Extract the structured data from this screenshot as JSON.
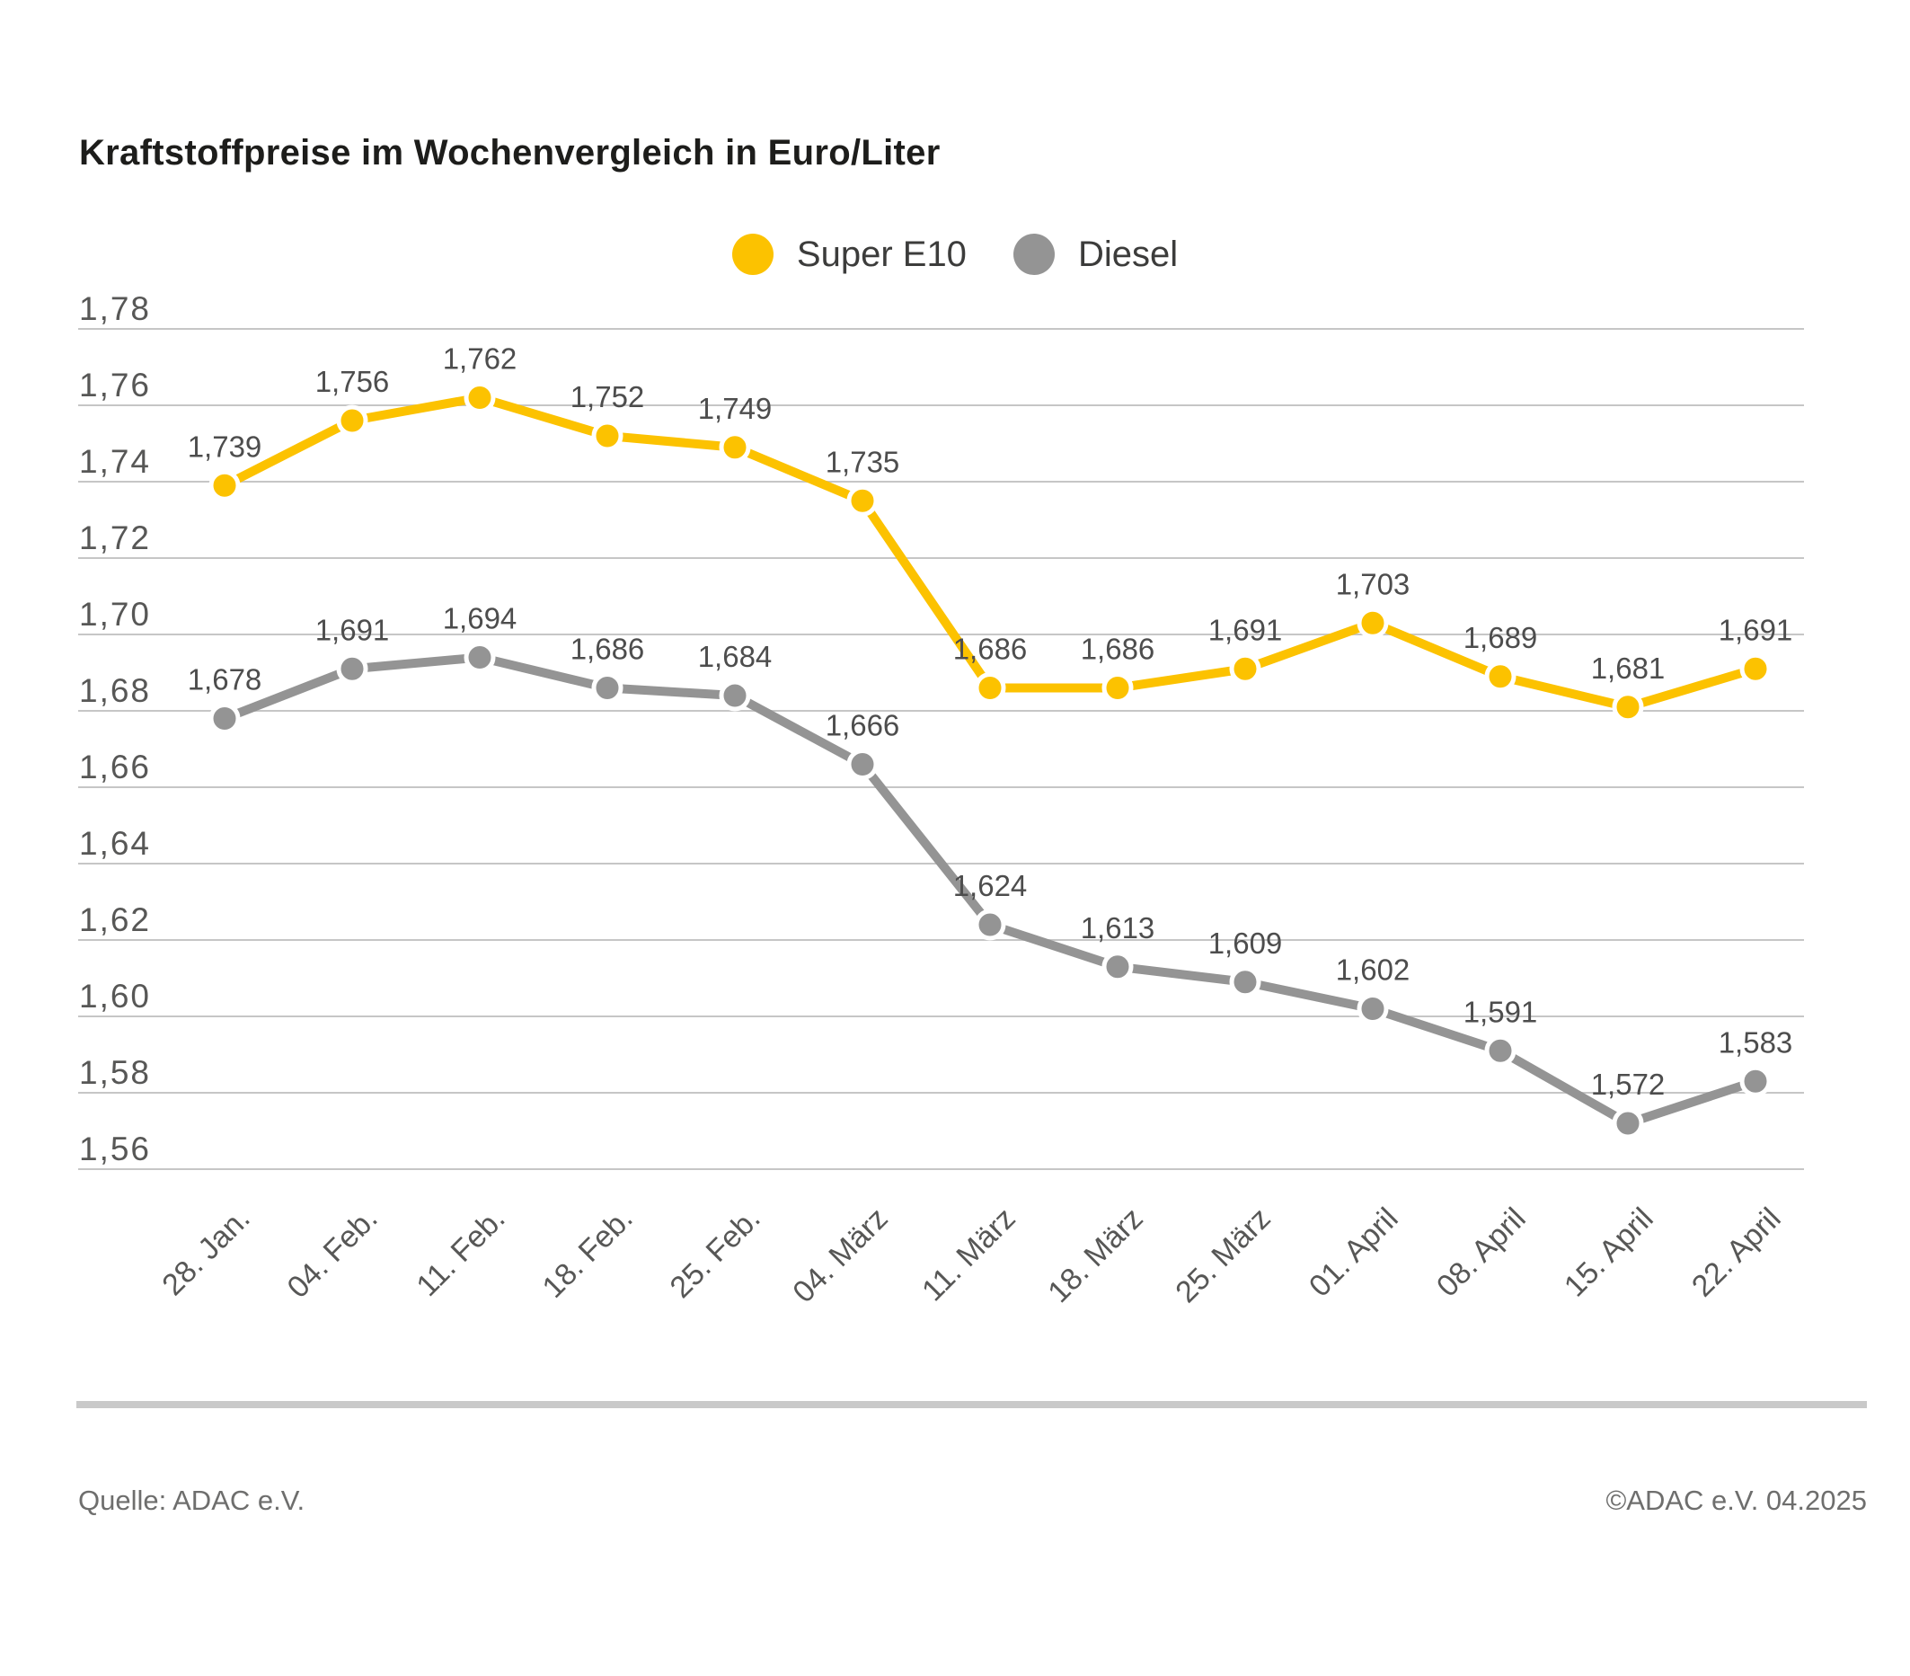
{
  "title": "Kraftstoffpreise im Wochenvergleich in Euro/Liter",
  "footer": {
    "source": "Quelle: ADAC e.V.",
    "copyright": "©ADAC e.V. 04.2025"
  },
  "colors": {
    "super_e10": "#fcc200",
    "diesel": "#949494",
    "grid": "#c6c6c6",
    "tick_label": "#575756",
    "data_label": "#4d4d4d",
    "divider": "#c9c9c9"
  },
  "chart_data": {
    "type": "line",
    "title": "Kraftstoffpreise im Wochenvergleich in Euro/Liter",
    "x": [
      "28. Jan.",
      "04. Feb.",
      "11. Feb.",
      "18. Feb.",
      "25. Feb.",
      "04. März",
      "11. März",
      "18. März",
      "25. März",
      "01. April",
      "08. April",
      "15. April",
      "22. April"
    ],
    "series": [
      {
        "name": "Super E10",
        "color": "#fcc200",
        "values": [
          1.739,
          1.756,
          1.762,
          1.752,
          1.749,
          1.735,
          1.686,
          1.686,
          1.691,
          1.703,
          1.689,
          1.681,
          1.691
        ],
        "point_labels": [
          "1,739",
          "1,756",
          "1,762",
          "1,752",
          "1,749",
          "1,735",
          "1,686",
          "1,686",
          "1,691",
          "1,703",
          "1,689",
          "1,681",
          "1,691"
        ]
      },
      {
        "name": "Diesel",
        "color": "#949494",
        "values": [
          1.678,
          1.691,
          1.694,
          1.686,
          1.684,
          1.666,
          1.624,
          1.613,
          1.609,
          1.602,
          1.591,
          1.572,
          1.583
        ],
        "point_labels": [
          "1,678",
          "1,691",
          "1,694",
          "1,686",
          "1,684",
          "1,666",
          "1,624",
          "1,613",
          "1,609",
          "1,602",
          "1,591",
          "1,572",
          "1,583"
        ]
      }
    ],
    "ylim": [
      1.56,
      1.78
    ],
    "ytick_step": 0.02,
    "ytick_labels": [
      "1,78",
      "1,76",
      "1,74",
      "1,72",
      "1,70",
      "1,68",
      "1,66",
      "1,64",
      "1,62",
      "1,60",
      "1,58",
      "1,56"
    ],
    "xlabel": "",
    "ylabel": "Euro/Liter",
    "grid": true,
    "legend_position": "top-center"
  }
}
